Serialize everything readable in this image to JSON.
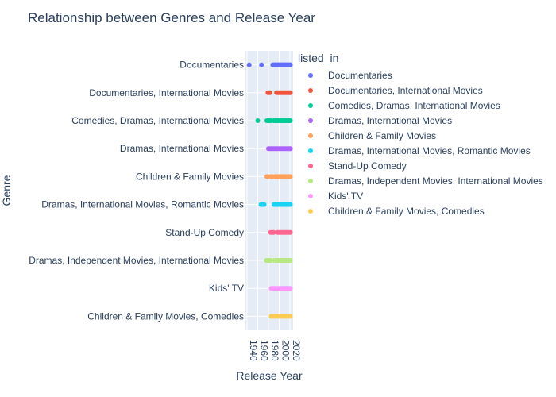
{
  "chart_data": {
    "type": "scatter",
    "title": "Relationship between Genres and Release Year",
    "xlabel": "Release Year",
    "ylabel": "Genre",
    "xlim": [
      1937,
      2026
    ],
    "x_ticks": [
      1940,
      1960,
      1980,
      2000,
      2020
    ],
    "grid": true,
    "legend_title": "listed_in",
    "legend_placement": "right",
    "categories": [
      "Documentaries",
      "Documentaries, International Movies",
      "Comedies, Dramas, International Movies",
      "Dramas, International Movies",
      "Children & Family Movies",
      "Dramas, International Movies, Romantic Movies",
      "Stand-Up Comedy",
      "Dramas, Independent Movies, International Movies",
      "Kids' TV",
      "Children & Family Movies, Comedies"
    ],
    "series": [
      {
        "name": "Documentaries",
        "color": "#636efa",
        "x": [
          1944,
          1967,
          1988,
          1990,
          1992,
          1994,
          1996,
          1998,
          2000,
          2002,
          2004,
          2006,
          2008,
          2010,
          2012,
          2014,
          2016,
          2018,
          2020,
          2021
        ]
      },
      {
        "name": "Documentaries, International Movies",
        "color": "#ef553b",
        "x": [
          1979,
          1981,
          1983,
          1995,
          1998,
          2000,
          2002,
          2004,
          2006,
          2008,
          2010,
          2012,
          2014,
          2016,
          2018,
          2020,
          2021
        ]
      },
      {
        "name": "Comedies, Dramas, International Movies",
        "color": "#00cc96",
        "x": [
          1960,
          1977,
          1979,
          1981,
          1983,
          1985,
          1990,
          1992,
          1994,
          1996,
          1998,
          2000,
          2002,
          2004,
          2006,
          2008,
          2010,
          2012,
          2014,
          2016,
          2018,
          2020,
          2021
        ]
      },
      {
        "name": "Dramas, International Movies",
        "color": "#ab63fa",
        "x": [
          1980,
          1982,
          1984,
          1986,
          1988,
          1990,
          1992,
          1994,
          1996,
          1998,
          2000,
          2002,
          2004,
          2006,
          2008,
          2010,
          2012,
          2014,
          2016,
          2018,
          2020,
          2021
        ]
      },
      {
        "name": "Children & Family Movies",
        "color": "#ffa15a",
        "x": [
          1977,
          1979,
          1985,
          1987,
          1992,
          1994,
          1996,
          1998,
          2000,
          2002,
          2004,
          2006,
          2008,
          2010,
          2012,
          2014,
          2016,
          2018,
          2020,
          2021
        ]
      },
      {
        "name": "Dramas, International Movies, Romantic Movies",
        "color": "#19d3f3",
        "x": [
          1966,
          1968,
          1970,
          1972,
          1990,
          1992,
          1994,
          1996,
          1998,
          2000,
          2002,
          2004,
          2006,
          2008,
          2010,
          2012,
          2014,
          2016,
          2018,
          2020,
          2021
        ]
      },
      {
        "name": "Stand-Up Comedy",
        "color": "#ff6692",
        "x": [
          1984,
          1986,
          1988,
          1990,
          1997,
          1999,
          2001,
          2003,
          2005,
          2007,
          2009,
          2011,
          2013,
          2015,
          2017,
          2019,
          2021
        ]
      },
      {
        "name": "Dramas, Independent Movies, International Movies",
        "color": "#b6e880",
        "x": [
          1976,
          1978,
          1980,
          1982,
          1984,
          1991,
          1995,
          1997,
          1999,
          2001,
          2003,
          2005,
          2007,
          2009,
          2011,
          2013,
          2015,
          2017,
          2019,
          2021
        ]
      },
      {
        "name": "Kids' TV",
        "color": "#ff97ff",
        "x": [
          1985,
          1987,
          1989,
          1991,
          1993,
          1995,
          1997,
          1999,
          2001,
          2003,
          2005,
          2007,
          2009,
          2011,
          2013,
          2015,
          2017,
          2019,
          2021
        ]
      },
      {
        "name": "Children & Family Movies, Comedies",
        "color": "#fecb52",
        "x": [
          1985,
          1987,
          1989,
          1991,
          1993,
          1995,
          1997,
          1999,
          2001,
          2003,
          2005,
          2007,
          2009,
          2011,
          2013,
          2015,
          2017,
          2019,
          2021
        ]
      }
    ]
  }
}
